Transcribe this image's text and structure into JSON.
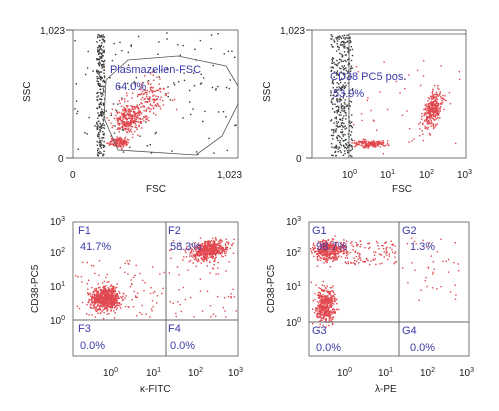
{
  "chart_data": [
    {
      "type": "scatter",
      "xlabel": "FSC",
      "ylabel": "SSC",
      "xscale": "linear",
      "yscale": "linear",
      "xlim": [
        0,
        1023
      ],
      "ylim": [
        0,
        1023
      ],
      "x_ticks": [
        "0",
        "1,023"
      ],
      "y_ticks": [
        "0",
        "1,023"
      ],
      "gates": [
        {
          "name": "Plasmazellen-FSC",
          "percent": "64.0%",
          "label": "Plasmazellen-FSC",
          "value_text": "64.0%"
        }
      ]
    },
    {
      "type": "scatter",
      "xlabel": "FSC",
      "ylabel": "SSC",
      "xscale": "log",
      "yscale": "linear",
      "xlim": [
        0.1,
        1000
      ],
      "ylim": [
        0,
        1023
      ],
      "x_ticks": [
        "10",
        "10",
        "10",
        "10"
      ],
      "x_tick_exponents": [
        "0",
        "1",
        "2",
        "3"
      ],
      "y_ticks": [
        "0",
        "1,023"
      ],
      "gates": [
        {
          "name": "CD38 PC5 pos.",
          "percent": "53.9%",
          "label": "CD38 PC5 pos.",
          "value_text": "53.9%"
        }
      ]
    },
    {
      "type": "scatter",
      "xlabel": "κ-FITC",
      "ylabel": "CD38-PC5",
      "xscale": "log",
      "yscale": "log",
      "xlim": [
        0.1,
        1000
      ],
      "ylim": [
        1,
        1000
      ],
      "x_ticks": [
        "10",
        "10",
        "10",
        "10"
      ],
      "x_tick_exponents": [
        "0",
        "1",
        "2",
        "3"
      ],
      "y_ticks": [
        "10",
        "10",
        "10",
        "10"
      ],
      "y_tick_exponents": [
        "0",
        "1",
        "2",
        "3"
      ],
      "quadrants": [
        {
          "label": "F1",
          "value": "41.7%"
        },
        {
          "label": "F2",
          "value": "58.3%"
        },
        {
          "label": "F3",
          "value": "0.0%"
        },
        {
          "label": "F4",
          "value": "0.0%"
        }
      ]
    },
    {
      "type": "scatter",
      "xlabel": "λ-PE",
      "ylabel": "CD38-PC5",
      "xscale": "log",
      "yscale": "log",
      "xlim": [
        0.1,
        1000
      ],
      "ylim": [
        1,
        1000
      ],
      "x_ticks": [
        "10",
        "10",
        "10",
        "10"
      ],
      "x_tick_exponents": [
        "0",
        "1",
        "2",
        "3"
      ],
      "y_ticks": [
        "10",
        "10",
        "10",
        "10"
      ],
      "y_tick_exponents": [
        "0",
        "1",
        "2",
        "3"
      ],
      "quadrants": [
        {
          "label": "G1",
          "value": "98.7%"
        },
        {
          "label": "G2",
          "value": "1.3%"
        },
        {
          "label": "G3",
          "value": "0.0%"
        },
        {
          "label": "G4",
          "value": "0.0%"
        }
      ]
    }
  ],
  "colors": {
    "event_red": "#e0484f",
    "event_black": "#3a3a3a",
    "gate_text": "#3a3aa8",
    "frame": "#777777"
  }
}
